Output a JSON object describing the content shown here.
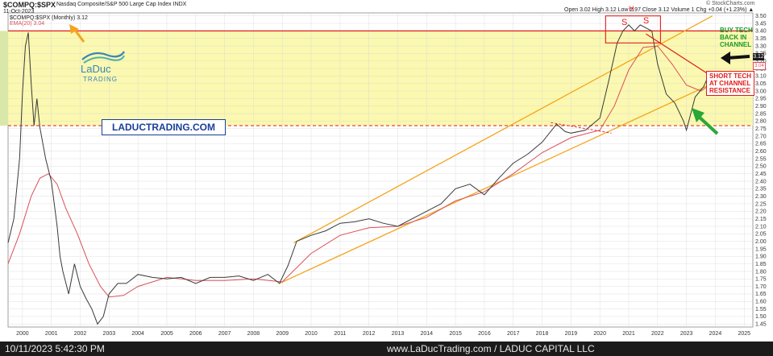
{
  "header": {
    "symbol": "$COMPQ:$SPX",
    "description": "Nasdaq Composite/S&P 500 Large Cap Index  INDX",
    "date": "11-Oct-2023",
    "ohlc": "Open 3.02  High 3.12  Low 2.97  Close 3.12  Volume 1  Chg +0.04 (+1.23%) ▲",
    "credit": "© StockCharts.com",
    "legend_main": "$COMPQ:$SPX (Monthly) 3.12",
    "legend_ema": "EMA(20) 3.04"
  },
  "logo": {
    "line1": "LaDuc",
    "line2": "TRADING"
  },
  "site_box": "LADUCTRADING.COM",
  "annotations": {
    "buy": [
      "BUY TECH",
      "BACK IN",
      "CHANNEL"
    ],
    "short": [
      "SHORT TECH",
      "AT CHANNEL",
      "RESISTANCE"
    ],
    "s_left": "S",
    "s_right": "S",
    "h": "H"
  },
  "price_tags": {
    "last": "3.12",
    "ema": "3.04"
  },
  "footer": {
    "left": "10/11/2023 5:42:30 PM",
    "center": "www.LaDucTrading.com / LADUC CAPITAL LLC"
  },
  "colors": {
    "zone": "#fbf7a6",
    "zone_left": "#d9e8a8",
    "channel": "#f4a51c",
    "ema": "#d9505a",
    "price": "#3a3a3a",
    "resistance": "#e21b1b",
    "buy_text": "#1a9a2a",
    "short_text": "#e21b1b"
  },
  "chart_data": {
    "type": "line",
    "title": "$COMPQ:$SPX",
    "ylim": [
      1.43,
      3.52
    ],
    "xlim": [
      1999.5,
      2025.3
    ],
    "y_ticks": [
      1.45,
      1.5,
      1.55,
      1.6,
      1.65,
      1.7,
      1.75,
      1.8,
      1.85,
      1.9,
      1.95,
      2.0,
      2.05,
      2.1,
      2.15,
      2.2,
      2.25,
      2.3,
      2.35,
      2.4,
      2.45,
      2.5,
      2.55,
      2.6,
      2.65,
      2.7,
      2.75,
      2.8,
      2.85,
      2.9,
      2.95,
      3.0,
      3.05,
      3.1,
      3.15,
      3.2,
      3.25,
      3.3,
      3.35,
      3.4,
      3.45,
      3.5
    ],
    "x_ticks": [
      2000,
      2001,
      2002,
      2003,
      2004,
      2005,
      2006,
      2007,
      2008,
      2009,
      2010,
      2011,
      2012,
      2013,
      2014,
      2015,
      2016,
      2017,
      2018,
      2019,
      2020,
      2021,
      2022,
      2023,
      2024,
      2025
    ],
    "resistance_level": 3.4,
    "support_level": 2.77,
    "series": [
      {
        "name": "$COMPQ:$SPX (Monthly)",
        "x": [
          1999.5,
          1999.7,
          1999.9,
          2000.0,
          2000.1,
          2000.2,
          2000.3,
          2000.4,
          2000.5,
          2000.6,
          2000.8,
          2001.0,
          2001.2,
          2001.3,
          2001.4,
          2001.6,
          2001.8,
          2002.0,
          2002.2,
          2002.4,
          2002.6,
          2002.8,
          2003.0,
          2003.3,
          2003.6,
          2004.0,
          2004.5,
          2005.0,
          2005.5,
          2006.0,
          2006.5,
          2007.0,
          2007.5,
          2008.0,
          2008.5,
          2008.9,
          2009.2,
          2009.5,
          2010.0,
          2010.5,
          2011.0,
          2011.5,
          2012.0,
          2012.5,
          2013.0,
          2013.5,
          2014.0,
          2014.5,
          2015.0,
          2015.5,
          2016.0,
          2016.5,
          2017.0,
          2017.5,
          2018.0,
          2018.5,
          2018.8,
          2019.0,
          2019.5,
          2020.0,
          2020.3,
          2020.6,
          2020.8,
          2021.0,
          2021.2,
          2021.4,
          2021.6,
          2021.8,
          2022.0,
          2022.3,
          2022.6,
          2022.9,
          2023.0,
          2023.3,
          2023.6,
          2023.8
        ],
        "values": [
          1.99,
          2.15,
          2.55,
          2.99,
          3.3,
          3.39,
          3.05,
          2.77,
          2.95,
          2.76,
          2.55,
          2.4,
          2.1,
          1.9,
          1.8,
          1.65,
          1.85,
          1.7,
          1.62,
          1.55,
          1.45,
          1.5,
          1.65,
          1.72,
          1.72,
          1.78,
          1.76,
          1.75,
          1.76,
          1.72,
          1.76,
          1.76,
          1.77,
          1.74,
          1.78,
          1.72,
          1.84,
          2.0,
          2.04,
          2.07,
          2.12,
          2.13,
          2.15,
          2.12,
          2.1,
          2.15,
          2.2,
          2.25,
          2.35,
          2.38,
          2.31,
          2.42,
          2.52,
          2.58,
          2.66,
          2.78,
          2.73,
          2.72,
          2.74,
          2.82,
          3.06,
          3.32,
          3.4,
          3.44,
          3.4,
          3.44,
          3.42,
          3.4,
          3.18,
          2.98,
          2.92,
          2.8,
          2.74,
          2.96,
          3.03,
          3.12
        ]
      },
      {
        "name": "EMA(20)",
        "x": [
          1999.5,
          1999.9,
          2000.3,
          2000.6,
          2000.9,
          2001.2,
          2001.5,
          2001.9,
          2002.3,
          2002.7,
          2003.0,
          2003.5,
          2004.0,
          2005.0,
          2006.0,
          2007.0,
          2008.0,
          2009.0,
          2010.0,
          2011.0,
          2012.0,
          2013.0,
          2014.0,
          2015.0,
          2016.0,
          2017.0,
          2018.0,
          2019.0,
          2020.0,
          2020.5,
          2021.0,
          2021.5,
          2022.0,
          2022.5,
          2023.0,
          2023.5,
          2023.8
        ],
        "values": [
          1.85,
          2.05,
          2.3,
          2.42,
          2.45,
          2.38,
          2.22,
          2.05,
          1.85,
          1.7,
          1.63,
          1.64,
          1.7,
          1.76,
          1.74,
          1.74,
          1.75,
          1.73,
          1.92,
          2.04,
          2.09,
          2.1,
          2.16,
          2.27,
          2.33,
          2.45,
          2.59,
          2.69,
          2.74,
          2.9,
          3.14,
          3.29,
          3.3,
          3.18,
          3.04,
          3.0,
          3.04
        ]
      }
    ],
    "channel_upper": {
      "x": [
        2009.4,
        2023.9
      ],
      "y": [
        1.99,
        3.5
      ]
    },
    "channel_lower": {
      "x": [
        2008.9,
        2023.9
      ],
      "y": [
        1.72,
        3.05
      ]
    }
  }
}
